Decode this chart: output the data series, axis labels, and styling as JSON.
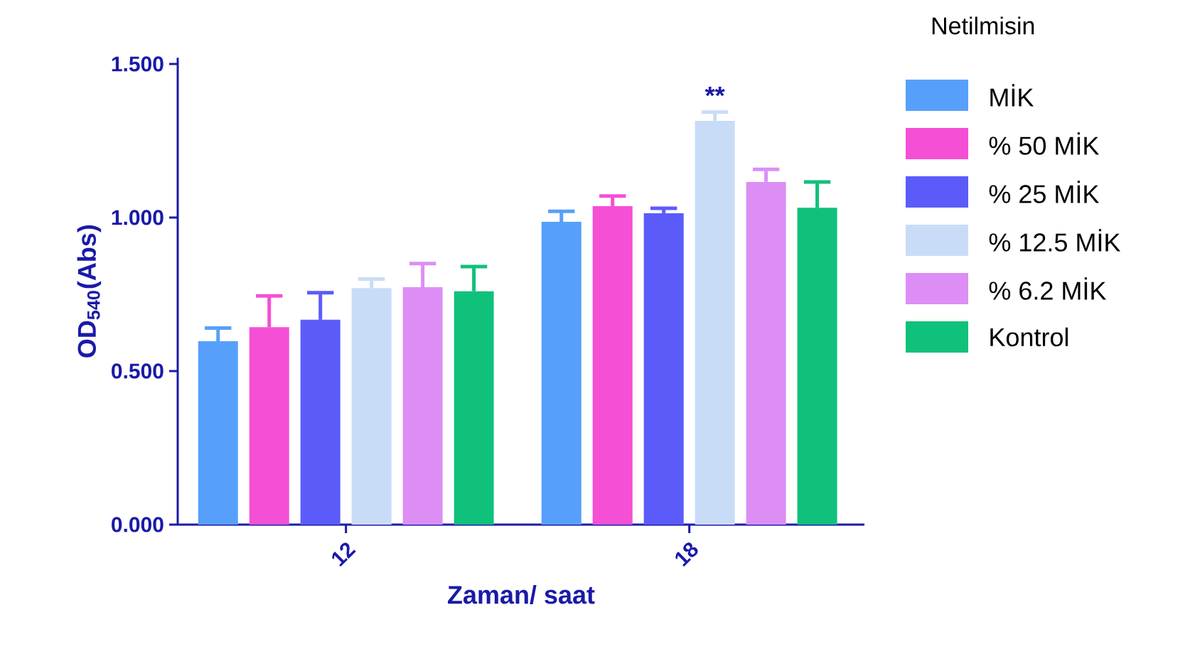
{
  "chart_data": {
    "type": "bar",
    "xlabel": "Zaman/ saat",
    "ylabel": "OD$_{540}$(Abs)",
    "legend_title": "Netilmisin",
    "legend": "right",
    "categories": [
      "12",
      "18"
    ],
    "series": [
      {
        "name": "MİK",
        "color": "#56a0fb",
        "values": [
          0.597,
          0.986
        ],
        "errors": [
          [
            0.597,
            0.64
          ],
          [
            0.986,
            1.02
          ]
        ]
      },
      {
        "name": "% 50 MİK",
        "color": "#f54fd6",
        "values": [
          0.643,
          1.037
        ],
        "errors": [
          [
            0.643,
            0.745
          ],
          [
            1.037,
            1.07
          ]
        ]
      },
      {
        "name": "% 25 MİK",
        "color": "#5b5bfa",
        "values": [
          0.667,
          1.014
        ],
        "errors": [
          [
            0.667,
            0.755
          ],
          [
            1.014,
            1.03
          ]
        ]
      },
      {
        "name": "% 12.5 MİK",
        "color": "#c9dcf7",
        "values": [
          0.77,
          1.315
        ],
        "errors": [
          [
            0.77,
            0.8
          ],
          [
            1.315,
            1.343
          ]
        ]
      },
      {
        "name": "% 6.2 MİK",
        "color": "#dc8ef5",
        "values": [
          0.773,
          1.116
        ],
        "errors": [
          [
            0.773,
            0.85
          ],
          [
            1.116,
            1.157
          ]
        ]
      },
      {
        "name": "Kontrol",
        "color": "#0fc17a",
        "values": [
          0.76,
          1.032
        ],
        "errors": [
          [
            0.76,
            0.84
          ],
          [
            1.032,
            1.116
          ]
        ]
      }
    ],
    "ylim": [
      0,
      1.52
    ],
    "yticks": [
      {
        "value": 0,
        "label": "0.000"
      },
      {
        "value": 0.5,
        "label": "0.500"
      },
      {
        "value": 1,
        "label": "1.000"
      },
      {
        "value": 1.5,
        "label": "1.500"
      }
    ],
    "annotations": [
      "**"
    ]
  }
}
